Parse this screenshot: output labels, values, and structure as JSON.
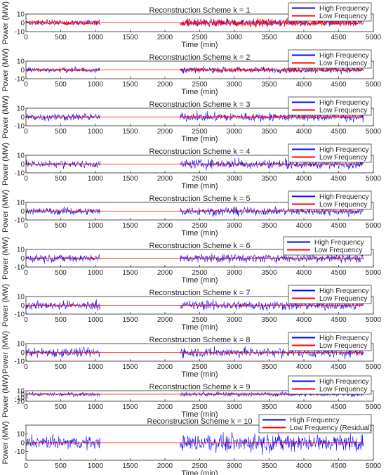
{
  "figure": {
    "background": "#ffffff",
    "series_colors": {
      "high": "#0000ff",
      "low": "#ff0000"
    }
  },
  "chart_data": [
    {
      "type": "line",
      "title": "Reconstruction Scheme k = 1",
      "xlabel": "Time (min)",
      "ylabel": "Power (MW)",
      "xlim": [
        0,
        5000
      ],
      "xticks": [
        0,
        500,
        1000,
        1500,
        2000,
        2500,
        3000,
        3500,
        4000,
        4500,
        5000
      ],
      "ylim": [
        -10,
        10
      ],
      "yticks": [
        10,
        0,
        -10
      ],
      "legend": "top-right",
      "grid": false,
      "series": [
        {
          "name": "High Frequency",
          "color": "#0000ff",
          "x": [
            0,
            1070,
            2220,
            4860
          ],
          "envelope": [
            [
              -4,
              4
            ],
            [
              -5,
              5
            ]
          ]
        },
        {
          "name": "Low Frequency",
          "color": "#ff0000",
          "x": [
            0,
            1070,
            2220,
            4860
          ],
          "envelope": [
            [
              -4,
              4
            ],
            [
              -6,
              7
            ]
          ]
        }
      ]
    },
    {
      "type": "line",
      "title": "Reconstruction Scheme k = 2",
      "xlabel": "Time (min)",
      "ylabel": "Power (MW)",
      "xlim": [
        0,
        5000
      ],
      "xticks": [
        0,
        500,
        1000,
        1500,
        2000,
        2500,
        3000,
        3500,
        4000,
        4500,
        5000
      ],
      "ylim": [
        -10,
        10
      ],
      "yticks": [
        10,
        0,
        -10
      ],
      "legend": "top-right",
      "grid": false,
      "series": [
        {
          "name": "High Frequency",
          "color": "#0000ff",
          "x": [
            0,
            1070,
            2220,
            4860
          ],
          "envelope": [
            [
              -4,
              4
            ],
            [
              -5,
              5
            ]
          ]
        },
        {
          "name": "Low Frequency",
          "color": "#ff0000",
          "x": [
            0,
            1070,
            2220,
            4860
          ],
          "envelope": [
            [
              -2,
              2
            ],
            [
              -3,
              3
            ]
          ]
        }
      ]
    },
    {
      "type": "line",
      "title": "Reconstruction Scheme k = 3",
      "xlabel": "Time (min)",
      "ylabel": "Power (MW)",
      "xlim": [
        0,
        5000
      ],
      "xticks": [
        0,
        500,
        1000,
        1500,
        2000,
        2500,
        3000,
        3500,
        4000,
        4500,
        5000
      ],
      "ylim": [
        -10,
        10
      ],
      "yticks": [
        10,
        0,
        -10
      ],
      "legend": "top-right",
      "grid": false,
      "series": [
        {
          "name": "High Frequency",
          "color": "#0000ff",
          "x": [
            0,
            1070,
            2220,
            4860
          ],
          "envelope": [
            [
              -6,
              6
            ],
            [
              -7,
              7
            ]
          ]
        },
        {
          "name": "Low Frequency",
          "color": "#ff0000",
          "x": [
            0,
            1070,
            2220,
            4860
          ],
          "envelope": [
            [
              -1,
              1
            ],
            [
              -2,
              2
            ]
          ]
        }
      ]
    },
    {
      "type": "line",
      "title": "Reconstruction Scheme k = 4",
      "xlabel": "Time (min)",
      "ylabel": "Power (MW)",
      "xlim": [
        0,
        5000
      ],
      "xticks": [
        0,
        500,
        1000,
        1500,
        2000,
        2500,
        3000,
        3500,
        4000,
        4500,
        5000
      ],
      "ylim": [
        -10,
        10
      ],
      "yticks": [
        10,
        0,
        -10
      ],
      "legend": "top-right",
      "grid": false,
      "series": [
        {
          "name": "High Frequency",
          "color": "#0000ff",
          "x": [
            0,
            1070,
            2220,
            4860
          ],
          "envelope": [
            [
              -6,
              6
            ],
            [
              -7,
              8
            ]
          ]
        },
        {
          "name": "Low Frequency",
          "color": "#ff0000",
          "x": [
            0,
            1070,
            2220,
            4860
          ],
          "envelope": [
            [
              -1,
              1
            ],
            [
              -1,
              1
            ]
          ]
        }
      ]
    },
    {
      "type": "line",
      "title": "Reconstruction Scheme k = 5",
      "xlabel": "Time (min)",
      "ylabel": "Power (MW)",
      "xlim": [
        0,
        5000
      ],
      "xticks": [
        0,
        500,
        1000,
        1500,
        2000,
        2500,
        3000,
        3500,
        4000,
        4500,
        5000
      ],
      "ylim": [
        -10,
        10
      ],
      "yticks": [
        10,
        0,
        -10
      ],
      "legend": "top-right",
      "grid": false,
      "series": [
        {
          "name": "High Frequency",
          "color": "#0000ff",
          "x": [
            0,
            1070,
            2220,
            4860
          ],
          "envelope": [
            [
              -6,
              6
            ],
            [
              -7,
              7
            ]
          ]
        },
        {
          "name": "Low Frequency",
          "color": "#ff0000",
          "x": [
            0,
            1070,
            2220,
            4860
          ],
          "envelope": [
            [
              -1,
              1
            ],
            [
              -1,
              1
            ]
          ]
        }
      ]
    },
    {
      "type": "line",
      "title": "Reconstruction Scheme k = 6",
      "xlabel": "Time (min)",
      "ylabel": "Power (MW)",
      "xlim": [
        0,
        5000
      ],
      "xticks": [
        0,
        500,
        1000,
        1500,
        2000,
        2500,
        3000,
        3500,
        4000,
        4500,
        5000
      ],
      "ylim": [
        -10,
        10
      ],
      "yticks": [
        10,
        0,
        -10
      ],
      "legend": "top-right",
      "grid": false,
      "series": [
        {
          "name": "High Frequency",
          "color": "#0000ff",
          "x": [
            0,
            1070,
            2220,
            4860
          ],
          "envelope": [
            [
              -6,
              6
            ],
            [
              -7,
              7
            ]
          ]
        },
        {
          "name": "Low Frequency",
          "color": "#ff0000",
          "x": [
            0,
            1070,
            2220,
            4860
          ],
          "envelope": [
            [
              -1,
              1
            ],
            [
              -1,
              1
            ]
          ]
        }
      ]
    },
    {
      "type": "line",
      "title": "Reconstruction Scheme k = 7",
      "xlabel": "Time (min)",
      "ylabel": "Power (MW)",
      "xlim": [
        0,
        5000
      ],
      "xticks": [
        0,
        500,
        1000,
        1500,
        2000,
        2500,
        3000,
        3500,
        4000,
        4500,
        5000
      ],
      "ylim": [
        -10,
        10
      ],
      "yticks": [
        10,
        0,
        -10
      ],
      "legend": "top-right",
      "grid": false,
      "series": [
        {
          "name": "High Frequency",
          "color": "#0000ff",
          "x": [
            0,
            1070,
            2220,
            4860
          ],
          "envelope": [
            [
              -7,
              7
            ],
            [
              -8,
              8
            ]
          ]
        },
        {
          "name": "Low Frequency",
          "color": "#ff0000",
          "x": [
            0,
            1070,
            2220,
            4860
          ],
          "envelope": [
            [
              -1,
              1
            ],
            [
              -1,
              1
            ]
          ]
        }
      ]
    },
    {
      "type": "line",
      "title": "Reconstruction Scheme k = 8",
      "xlabel": "Time (min)",
      "ylabel": "Power (MW)",
      "xlim": [
        0,
        5000
      ],
      "xticks": [
        0,
        500,
        1000,
        1500,
        2000,
        2500,
        3000,
        3500,
        4000,
        4500,
        5000
      ],
      "ylim": [
        -10,
        10
      ],
      "yticks": [
        10,
        0,
        -10
      ],
      "legend": "top-right",
      "grid": false,
      "series": [
        {
          "name": "High Frequency",
          "color": "#0000ff",
          "x": [
            0,
            1070,
            2220,
            4860
          ],
          "envelope": [
            [
              -8,
              8
            ],
            [
              -8,
              8
            ]
          ]
        },
        {
          "name": "Low Frequency",
          "color": "#ff0000",
          "x": [
            0,
            1070,
            2220,
            4860
          ],
          "envelope": [
            [
              -1,
              1
            ],
            [
              -1,
              1
            ]
          ]
        }
      ]
    },
    {
      "type": "line",
      "title": "Reconstruction Scheme k = 9",
      "xlabel": "Time (min)",
      "ylabel": "Power (MW)",
      "xlim": [
        0,
        5000
      ],
      "xticks": [
        0,
        500,
        1000,
        1500,
        2000,
        2500,
        3000,
        3500,
        4000,
        4500,
        5000
      ],
      "ylim": [
        -20,
        10
      ],
      "yticks": [
        10,
        0,
        -10,
        -20
      ],
      "legend": "top-right",
      "grid": false,
      "series": [
        {
          "name": "High Frequency",
          "color": "#0000ff",
          "x": [
            0,
            1070,
            2220,
            4860
          ],
          "envelope": [
            [
              -8,
              8
            ],
            [
              -9,
              9
            ]
          ]
        },
        {
          "name": "Low Frequency",
          "color": "#ff0000",
          "x": [
            0,
            1070,
            2220,
            4860
          ],
          "envelope": [
            [
              -1,
              1
            ],
            [
              -1,
              1
            ]
          ]
        }
      ]
    },
    {
      "type": "line",
      "title": "Reconstruction Scheme k = 10",
      "xlabel": "Time (min)",
      "ylabel": "Power (MW)",
      "xlim": [
        0,
        5000
      ],
      "xticks": [
        0,
        500,
        1000,
        1500,
        2000,
        2500,
        3000,
        3500,
        4000,
        4500,
        5000
      ],
      "ylim": [
        -20,
        20
      ],
      "yticks": [
        10,
        0,
        -10
      ],
      "legend": "top-right",
      "grid": false,
      "series": [
        {
          "name": "High Frequency",
          "color": "#0000ff",
          "x": [
            0,
            1070,
            2220,
            4860
          ],
          "envelope": [
            [
              -10,
              10
            ],
            [
              -14,
              14
            ]
          ]
        },
        {
          "name": "Low Frequency (Residual)",
          "color": "#ff0000",
          "x": [
            0,
            1070,
            2220,
            4860
          ],
          "envelope": [
            [
              -1,
              1
            ],
            [
              -1,
              1
            ]
          ]
        }
      ]
    }
  ]
}
